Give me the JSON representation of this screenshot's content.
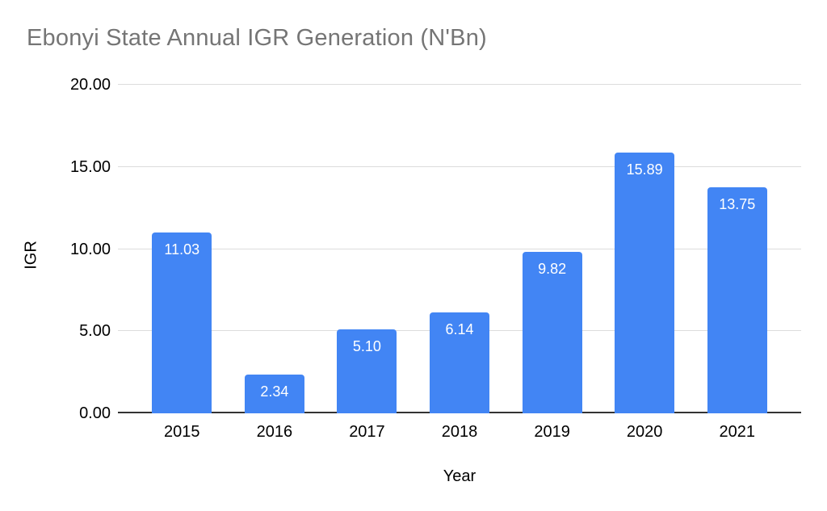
{
  "chart_data": {
    "type": "bar",
    "title": "Ebonyi State Annual IGR Generation (N'Bn)",
    "xlabel": "Year",
    "ylabel": "IGR",
    "categories": [
      "2015",
      "2016",
      "2017",
      "2018",
      "2019",
      "2020",
      "2021"
    ],
    "values": [
      11.03,
      2.34,
      5.1,
      6.14,
      9.82,
      15.89,
      13.75
    ],
    "bar_labels": [
      "11.03",
      "2.34",
      "5.10",
      "6.14",
      "9.82",
      "15.89",
      "13.75"
    ],
    "ylim": [
      0,
      20
    ],
    "yticks": [
      {
        "value": 0,
        "label": "0.00"
      },
      {
        "value": 5,
        "label": "5.00"
      },
      {
        "value": 10,
        "label": "10.00"
      },
      {
        "value": 15,
        "label": "15.00"
      },
      {
        "value": 20,
        "label": "20.00"
      }
    ],
    "grid": true,
    "legend": false,
    "colors": {
      "bar": "#4285f4",
      "bar_label": "#ffffff",
      "chart_title": "#757575",
      "axis_text": "#000000",
      "gridline": "#dcdcdc",
      "baseline": "#333333",
      "background": "#ffffff"
    }
  }
}
